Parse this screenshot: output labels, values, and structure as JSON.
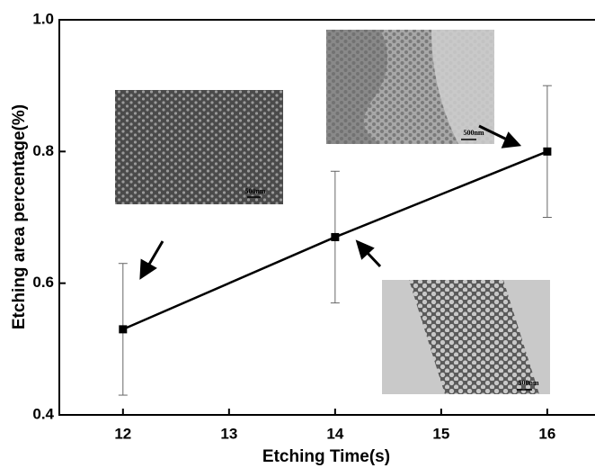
{
  "chart_data": {
    "type": "line",
    "x_label": "Etching Time(s)",
    "y_label": "Etching area percentage(%)",
    "x": [
      12,
      14,
      16
    ],
    "series": [
      {
        "color": "#000000",
        "values": [
          0.53,
          0.67,
          0.8
        ],
        "errors": [
          0.1,
          0.1,
          0.1
        ]
      }
    ],
    "xlim": [
      11.4,
      16.45
    ],
    "ylim": [
      0.4,
      1.0
    ],
    "xticks": [
      12,
      13,
      14,
      15,
      16
    ],
    "yticks": [
      0.4,
      0.6,
      0.8,
      {
        "value": 1,
        "label": "1.0"
      }
    ],
    "annotations": [
      "500nm",
      "500nm",
      "500nm"
    ]
  }
}
